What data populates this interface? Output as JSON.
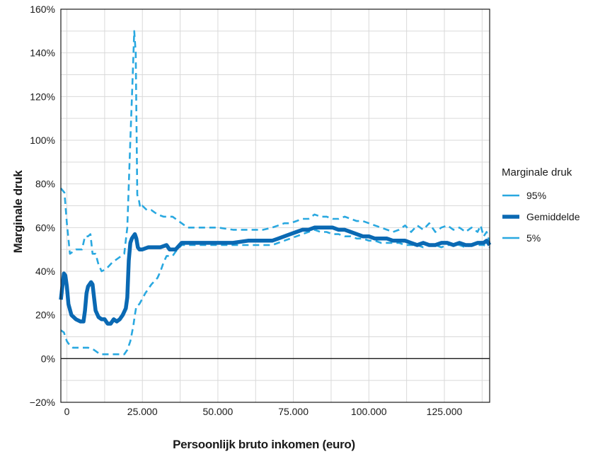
{
  "chart_data": {
    "type": "line",
    "title": "",
    "xlabel": "Persoonlijk bruto inkomen (euro)",
    "ylabel": "Marginale druk",
    "xlim": [
      -2000,
      140000
    ],
    "ylim": [
      -20,
      160
    ],
    "x_ticks": [
      0,
      25000,
      50000,
      75000,
      100000,
      125000
    ],
    "x_tick_labels": [
      "0",
      "25.000",
      "50.000",
      "75.000",
      "100.000",
      "125.000"
    ],
    "y_ticks": [
      -20,
      0,
      20,
      40,
      60,
      80,
      100,
      120,
      140,
      160
    ],
    "y_tick_labels": [
      "−20%",
      "0%",
      "20%",
      "40%",
      "60%",
      "80%",
      "100%",
      "120%",
      "140%",
      "160%"
    ],
    "grid": true,
    "legend": {
      "title": "Marginale druk",
      "placement": "right"
    },
    "series": [
      {
        "name": "95%",
        "style": "dashed",
        "color": "#29a8e0",
        "x": [
          -2000,
          -800,
          0,
          1000,
          3000,
          5000,
          6000,
          7000,
          7800,
          8500,
          9500,
          10500,
          11500,
          13000,
          15000,
          17000,
          19000,
          20000,
          21000,
          21800,
          22300,
          22800,
          23300,
          23800,
          24300,
          25000,
          26500,
          28000,
          30000,
          32000,
          35000,
          38000,
          40000,
          45000,
          50000,
          55000,
          60000,
          65000,
          68000,
          70000,
          72000,
          74000,
          76000,
          78000,
          80000,
          82000,
          84000,
          86000,
          88000,
          90000,
          92000,
          94000,
          96000,
          98000,
          100000,
          102000,
          104000,
          106000,
          108000,
          110000,
          112000,
          114000,
          116000,
          118000,
          120000,
          122000,
          124000,
          126000,
          128000,
          130000,
          132000,
          134000,
          136000,
          137000,
          138000,
          139000,
          140000
        ],
        "values": [
          78,
          76,
          62,
          48,
          50,
          50,
          56,
          56,
          57,
          48,
          48,
          43,
          40,
          41,
          44,
          46,
          48,
          60,
          100,
          130,
          150,
          140,
          75,
          73,
          69,
          70,
          68,
          68,
          66,
          65,
          65,
          62,
          60,
          60,
          60,
          59,
          59,
          59,
          60,
          61,
          62,
          62,
          63,
          64,
          64,
          66,
          65,
          65,
          64,
          64,
          65,
          64,
          63,
          63,
          62,
          61,
          60,
          59,
          58,
          59,
          61,
          58,
          61,
          59,
          62,
          58,
          60,
          61,
          59,
          60,
          58,
          60,
          58,
          61,
          56,
          58,
          53
        ]
      },
      {
        "name": "Gemiddelde",
        "style": "solid",
        "color": "#0a69b3",
        "x": [
          -2000,
          -1500,
          -1000,
          -500,
          0,
          500,
          1500,
          3000,
          4500,
          5500,
          6000,
          6500,
          7000,
          7500,
          8000,
          8500,
          9000,
          9500,
          10500,
          11500,
          12500,
          13500,
          14500,
          15500,
          16500,
          17500,
          18500,
          19500,
          20000,
          20500,
          21000,
          21500,
          22000,
          22500,
          23000,
          23500,
          24000,
          25000,
          27000,
          29000,
          31000,
          33000,
          34000,
          36000,
          38000,
          40000,
          45000,
          50000,
          55000,
          60000,
          65000,
          68000,
          70000,
          72000,
          74000,
          76000,
          78000,
          80000,
          82000,
          84000,
          86000,
          88000,
          90000,
          92000,
          94000,
          96000,
          98000,
          100000,
          102000,
          104000,
          106000,
          108000,
          110000,
          112000,
          114000,
          116000,
          118000,
          120000,
          122000,
          124000,
          126000,
          128000,
          130000,
          132000,
          134000,
          136000,
          137000,
          138000,
          139000,
          140000
        ],
        "values": [
          27,
          33,
          39,
          38,
          33,
          25,
          20,
          18,
          17,
          17,
          22,
          30,
          33,
          34,
          35,
          34,
          28,
          22,
          19,
          18,
          18,
          16,
          16,
          18,
          17,
          18,
          20,
          23,
          28,
          45,
          53,
          55,
          56,
          57,
          55,
          51,
          50,
          50,
          51,
          51,
          51,
          52,
          50,
          50,
          53,
          53,
          53,
          53,
          53,
          54,
          54,
          54,
          55,
          56,
          57,
          58,
          59,
          59,
          60,
          60,
          60,
          60,
          59,
          59,
          58,
          57,
          56,
          56,
          55,
          55,
          55,
          54,
          54,
          54,
          53,
          52,
          53,
          52,
          52,
          53,
          53,
          52,
          53,
          52,
          52,
          53,
          53,
          53,
          54,
          52
        ]
      },
      {
        "name": "5%",
        "style": "dashed",
        "color": "#29a8e0",
        "x": [
          -2000,
          -1000,
          0,
          1000,
          2000,
          4000,
          7000,
          9000,
          11000,
          14000,
          17000,
          19000,
          20000,
          21000,
          22000,
          22500,
          23000,
          24000,
          26000,
          28000,
          30000,
          31000,
          32000,
          33000,
          35000,
          36000,
          38000,
          40000,
          45000,
          50000,
          55000,
          60000,
          65000,
          68000,
          70000,
          72000,
          74000,
          76000,
          78000,
          80000,
          82000,
          84000,
          86000,
          88000,
          90000,
          92000,
          94000,
          96000,
          98000,
          100000,
          102000,
          104000,
          106000,
          108000,
          110000,
          112000,
          114000,
          116000,
          118000,
          120000,
          122000,
          124000,
          126000,
          128000,
          130000,
          132000,
          134000,
          136000,
          138000,
          140000
        ],
        "values": [
          13,
          12,
          8,
          6,
          5,
          5,
          5,
          4,
          2,
          2,
          2,
          2,
          4,
          8,
          15,
          20,
          24,
          25,
          30,
          34,
          37,
          40,
          44,
          47,
          47,
          49,
          52,
          52,
          52,
          52,
          52,
          52,
          52,
          52,
          53,
          54,
          55,
          56,
          57,
          58,
          59,
          58,
          58,
          57,
          57,
          56,
          56,
          55,
          55,
          54,
          54,
          53,
          53,
          53,
          53,
          52,
          52,
          52,
          51,
          52,
          52,
          51,
          52,
          52,
          52,
          51,
          52,
          52,
          52,
          51
        ]
      }
    ]
  }
}
